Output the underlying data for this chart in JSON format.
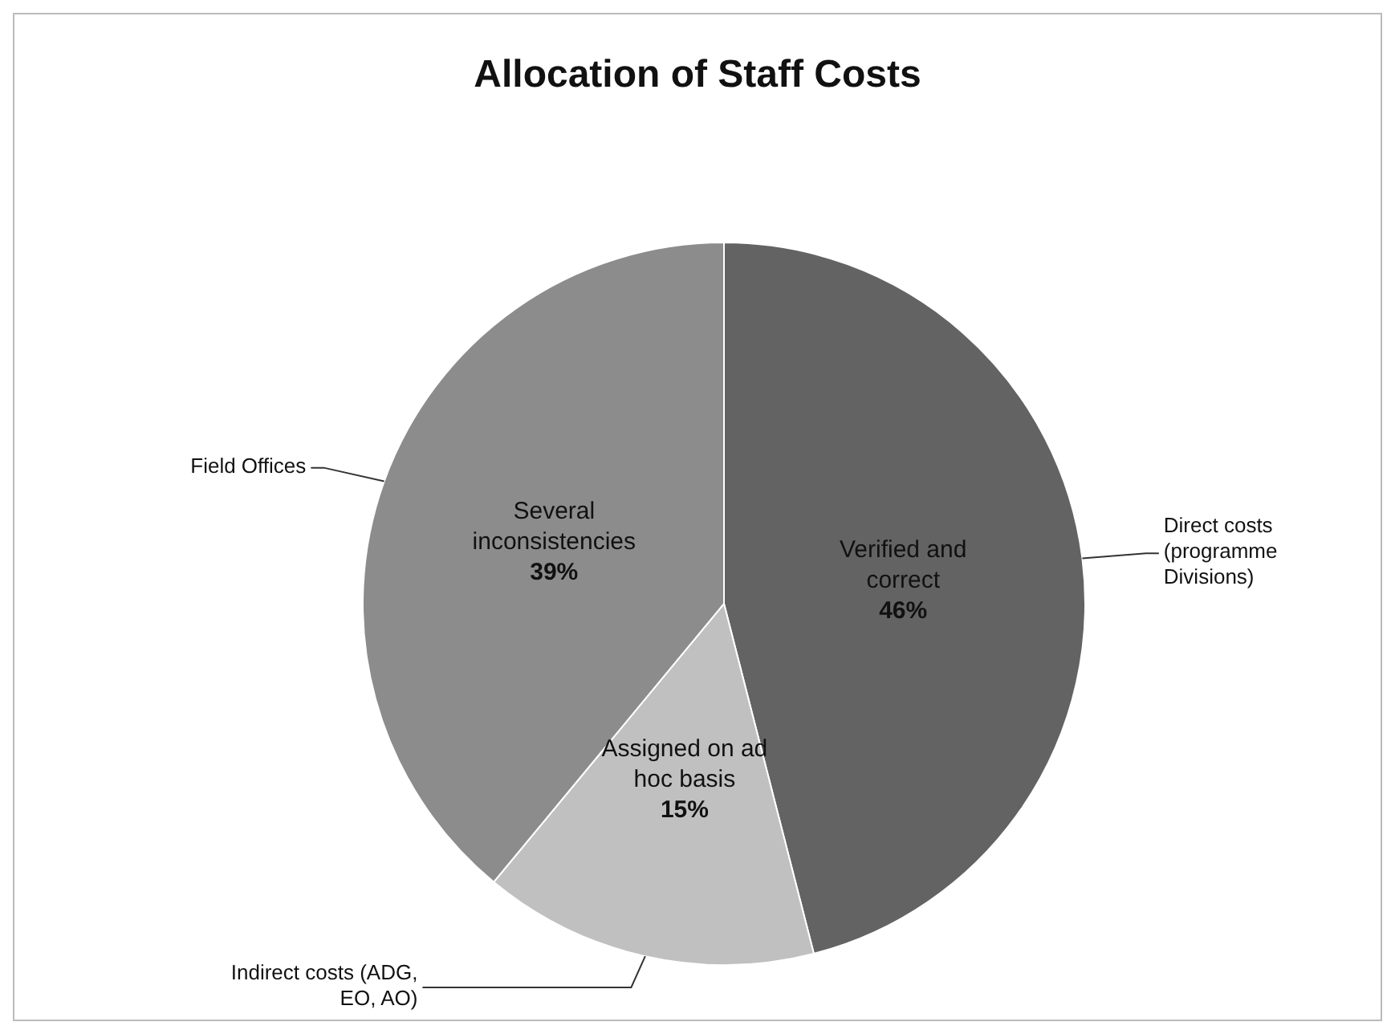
{
  "chart_data": {
    "type": "pie",
    "title": "Allocation of Staff Costs",
    "categories": [
      "Direct costs (programme Divisions)",
      "Indirect costs (ADG, EO, AO)",
      "Field Offices"
    ],
    "values": [
      46,
      15,
      39
    ],
    "colors": [
      "#636363",
      "#c0c0c0",
      "#8c8c8c"
    ],
    "value_labels": [
      "46%",
      "15%",
      "39%"
    ],
    "annotations": [
      {
        "text": "Verified and correct",
        "x": "Direct costs (programme Divisions)"
      },
      {
        "text": "Assigned on ad hoc basis",
        "x": "Indirect costs (ADG, EO, AO)"
      },
      {
        "text": "Several inconsistencies",
        "x": "Field Offices"
      }
    ],
    "legend": false
  }
}
